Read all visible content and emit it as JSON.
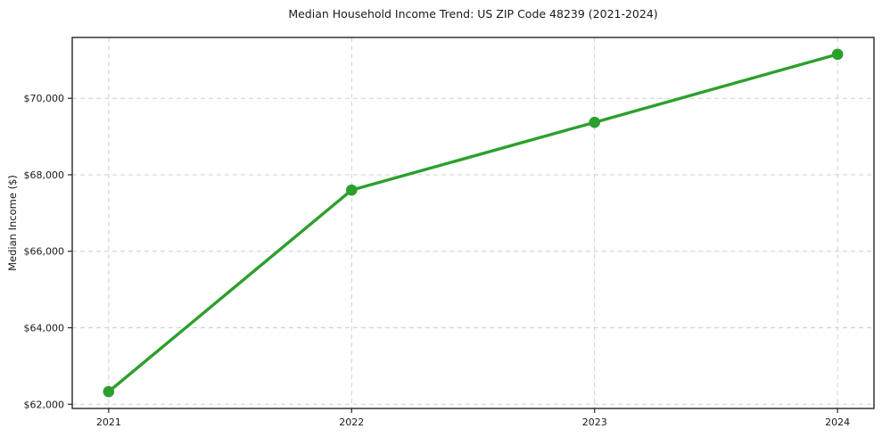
{
  "chart_data": {
    "type": "line",
    "title": "Median Household Income Trend: US ZIP Code 48239 (2021-2024)",
    "xlabel": "",
    "ylabel": "Median Income ($)",
    "x": [
      2021,
      2022,
      2023,
      2024
    ],
    "series": [
      {
        "name": "Median Household Income",
        "values": [
          62330,
          67600,
          69370,
          71150
        ]
      }
    ],
    "x_tick_labels": [
      "2021",
      "2022",
      "2023",
      "2024"
    ],
    "y_ticks": [
      62000,
      64000,
      66000,
      68000,
      70000
    ],
    "y_tick_labels": [
      "$62,000",
      "$64,000",
      "$66,000",
      "$68,000",
      "$70,000"
    ],
    "xlim": [
      2020.85,
      2024.15
    ],
    "ylim": [
      61890,
      71590
    ],
    "grid": true,
    "grid_style": "dashed",
    "legend": false,
    "line_color": "#2ca02c",
    "grid_color": "#cfcfcf",
    "spine_color": "#262626",
    "text_color": "#1a1a1a",
    "background": "#ffffff"
  }
}
